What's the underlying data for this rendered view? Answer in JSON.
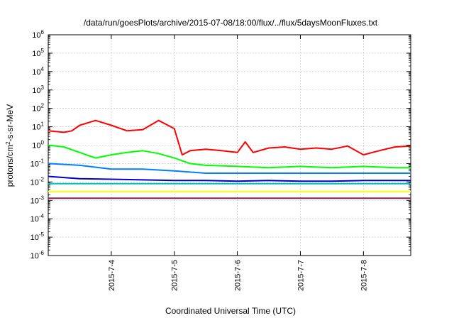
{
  "chart_data": {
    "type": "line",
    "title": "/data/run/goesPlots/archive/2015-07-08/18:00/flux/../flux/5daysMoonFluxes.txt",
    "xlabel": "Coordinated Universal Time (UTC)",
    "ylabel": {
      "pre": "protons/cm",
      "sup": "2",
      "post": "-s-sr-MeV"
    },
    "xaxis": {
      "type": "date",
      "range": [
        "2015-07-03T00:00",
        "2015-07-08T18:00"
      ],
      "ticks": [
        {
          "value": "2015-07-04",
          "label": "2015-7-4"
        },
        {
          "value": "2015-07-05",
          "label": "2015-7-5"
        },
        {
          "value": "2015-07-06",
          "label": "2015-7-6"
        },
        {
          "value": "2015-07-07",
          "label": "2015-7-7"
        },
        {
          "value": "2015-07-08",
          "label": "2015-7-8"
        }
      ]
    },
    "yaxis": {
      "scale": "log",
      "range": [
        1e-06,
        1000000.0
      ],
      "ticks": [
        {
          "value": 1e-06,
          "base": "10",
          "exp": "-6"
        },
        {
          "value": 1e-05,
          "base": "10",
          "exp": "-5"
        },
        {
          "value": 0.0001,
          "base": "10",
          "exp": "-4"
        },
        {
          "value": 0.001,
          "base": "10",
          "exp": "-3"
        },
        {
          "value": 0.01,
          "base": "10",
          "exp": "-2"
        },
        {
          "value": 0.1,
          "base": "10",
          "exp": "-1"
        },
        {
          "value": 1,
          "base": "10",
          "exp": "0"
        },
        {
          "value": 10,
          "base": "10",
          "exp": "1"
        },
        {
          "value": 100,
          "base": "10",
          "exp": "2"
        },
        {
          "value": 1000,
          "base": "10",
          "exp": "3"
        },
        {
          "value": 10000,
          "base": "10",
          "exp": "4"
        },
        {
          "value": 100000,
          "base": "10",
          "exp": "5"
        },
        {
          "value": 1000000,
          "base": "10",
          "exp": "6"
        }
      ]
    },
    "grid": true,
    "series": [
      {
        "color": "#ff0000",
        "x": [
          "2015-07-03T00:00",
          "2015-07-03T06:00",
          "2015-07-03T09:00",
          "2015-07-03T12:00",
          "2015-07-03T18:00",
          "2015-07-04T00:00",
          "2015-07-04T06:00",
          "2015-07-04T12:00",
          "2015-07-04T18:00",
          "2015-07-05T00:00",
          "2015-07-05T03:00",
          "2015-07-05T06:00",
          "2015-07-05T12:00",
          "2015-07-05T18:00",
          "2015-07-06T00:00",
          "2015-07-06T03:00",
          "2015-07-06T06:00",
          "2015-07-06T12:00",
          "2015-07-06T18:00",
          "2015-07-07T00:00",
          "2015-07-07T06:00",
          "2015-07-07T12:00",
          "2015-07-07T18:00",
          "2015-07-08T00:00",
          "2015-07-08T06:00",
          "2015-07-08T12:00",
          "2015-07-08T18:00"
        ],
        "y": [
          6,
          5,
          6,
          12,
          22,
          12,
          6,
          7,
          22,
          8,
          0.3,
          0.5,
          0.6,
          0.5,
          0.4,
          1.5,
          0.4,
          0.7,
          0.8,
          0.6,
          0.7,
          0.6,
          0.9,
          0.3,
          0.5,
          0.8,
          0.9
        ]
      },
      {
        "color": "#00ff00",
        "x": [
          "2015-07-03T00:00",
          "2015-07-03T06:00",
          "2015-07-03T12:00",
          "2015-07-03T18:00",
          "2015-07-04T00:00",
          "2015-07-04T06:00",
          "2015-07-04T12:00",
          "2015-07-04T18:00",
          "2015-07-05T00:00",
          "2015-07-05T06:00",
          "2015-07-05T12:00",
          "2015-07-06T00:00",
          "2015-07-06T12:00",
          "2015-07-07T00:00",
          "2015-07-07T12:00",
          "2015-07-08T00:00",
          "2015-07-08T12:00",
          "2015-07-08T18:00"
        ],
        "y": [
          1,
          0.8,
          0.4,
          0.2,
          0.3,
          0.4,
          0.5,
          0.35,
          0.2,
          0.1,
          0.08,
          0.07,
          0.06,
          0.07,
          0.06,
          0.07,
          0.06,
          0.06
        ]
      },
      {
        "color": "#0080ff",
        "x": [
          "2015-07-03T00:00",
          "2015-07-03T12:00",
          "2015-07-04T00:00",
          "2015-07-04T12:00",
          "2015-07-05T00:00",
          "2015-07-05T12:00",
          "2015-07-06T00:00",
          "2015-07-06T12:00",
          "2015-07-07T00:00",
          "2015-07-07T12:00",
          "2015-07-08T00:00",
          "2015-07-08T18:00"
        ],
        "y": [
          0.1,
          0.08,
          0.05,
          0.05,
          0.04,
          0.03,
          0.03,
          0.03,
          0.03,
          0.03,
          0.03,
          0.03
        ]
      },
      {
        "color": "#0000cc",
        "x": [
          "2015-07-03T00:00",
          "2015-07-03T12:00",
          "2015-07-04T00:00",
          "2015-07-04T12:00",
          "2015-07-05T00:00",
          "2015-07-05T12:00",
          "2015-07-06T00:00",
          "2015-07-06T12:00",
          "2015-07-07T00:00",
          "2015-07-07T12:00",
          "2015-07-08T00:00",
          "2015-07-08T18:00"
        ],
        "y": [
          0.02,
          0.015,
          0.014,
          0.013,
          0.012,
          0.012,
          0.011,
          0.012,
          0.011,
          0.011,
          0.012,
          0.012
        ]
      },
      {
        "color": "#00c0c0",
        "x": [
          "2015-07-03T00:00",
          "2015-07-04T00:00",
          "2015-07-05T00:00",
          "2015-07-06T00:00",
          "2015-07-07T00:00",
          "2015-07-08T00:00",
          "2015-07-08T18:00"
        ],
        "y": [
          0.008,
          0.008,
          0.008,
          0.008,
          0.008,
          0.008,
          0.008
        ]
      },
      {
        "color": "#ffff00",
        "x": [
          "2015-07-03T00:00",
          "2015-07-04T00:00",
          "2015-07-05T00:00",
          "2015-07-06T00:00",
          "2015-07-07T00:00",
          "2015-07-08T00:00",
          "2015-07-08T18:00"
        ],
        "y": [
          0.003,
          0.003,
          0.003,
          0.003,
          0.003,
          0.003,
          0.003
        ]
      },
      {
        "color": "#8b2252",
        "x": [
          "2015-07-03T00:00",
          "2015-07-04T00:00",
          "2015-07-05T00:00",
          "2015-07-06T00:00",
          "2015-07-07T00:00",
          "2015-07-08T00:00",
          "2015-07-08T18:00"
        ],
        "y": [
          0.0013,
          0.0013,
          0.0013,
          0.0013,
          0.0013,
          0.0013,
          0.0013
        ]
      }
    ]
  }
}
